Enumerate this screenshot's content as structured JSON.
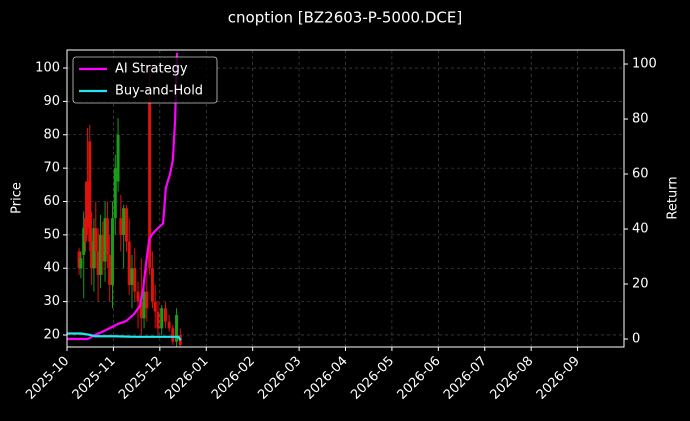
{
  "chart_data": {
    "type": "candlestick",
    "title": "cnoption [BZ2603-P-5000.DCE]",
    "ylabel": "Price",
    "y2label": "Return",
    "up_color": "#1a9e1a",
    "down_color": "#e0120e",
    "candles": {
      "x": [
        0.26,
        0.3,
        0.36,
        0.4,
        0.44,
        0.49,
        0.53,
        0.58,
        0.62,
        0.67,
        0.72,
        0.77,
        0.82,
        0.87,
        0.92,
        0.98,
        1.04,
        1.1,
        1.16,
        1.22,
        1.28,
        1.34,
        1.4,
        1.46,
        1.53,
        1.6,
        1.66,
        1.72,
        1.78,
        1.84,
        1.9,
        1.96,
        2.04,
        2.12,
        2.2,
        2.28,
        2.36,
        2.44
      ],
      "open": [
        45,
        40,
        44,
        55,
        66,
        78,
        48,
        40,
        52,
        45,
        38,
        50,
        42,
        55,
        44,
        35,
        55,
        66,
        55,
        50,
        58,
        48,
        35,
        40,
        33,
        30,
        25,
        33,
        90,
        40,
        30,
        27,
        22,
        28,
        24,
        22,
        18,
        20
      ],
      "high": [
        46,
        45,
        57,
        66,
        82,
        83,
        57,
        55,
        60,
        52,
        56,
        54,
        60,
        60,
        50,
        60,
        74,
        85,
        62,
        59,
        59,
        55,
        44,
        46,
        36,
        43,
        35,
        40,
        100,
        45,
        35,
        30,
        29,
        30,
        26,
        23,
        28,
        22
      ],
      "low": [
        38,
        37,
        31,
        45,
        50,
        45,
        35,
        33,
        40,
        30,
        34,
        38,
        36,
        40,
        30,
        28,
        50,
        63,
        45,
        40,
        45,
        32,
        28,
        30,
        22,
        20,
        22,
        24,
        38,
        28,
        22,
        20,
        20,
        22,
        21,
        17,
        16,
        16
      ],
      "close": [
        40,
        43,
        52,
        48,
        52,
        48,
        40,
        52,
        45,
        38,
        50,
        42,
        55,
        44,
        35,
        55,
        70,
        80,
        50,
        58,
        48,
        35,
        40,
        33,
        30,
        25,
        33,
        28,
        40,
        30,
        27,
        22,
        28,
        24,
        22,
        18,
        26,
        17
      ]
    },
    "series": [
      {
        "name": "AI Strategy",
        "color": "#ff00ff",
        "axis": "y2",
        "x": [
          0,
          0.24,
          0.45,
          0.6,
          0.75,
          0.93,
          1.1,
          1.27,
          1.44,
          1.57,
          1.64,
          1.7,
          1.77,
          1.83,
          1.94,
          2.07,
          2.13,
          2.22,
          2.28,
          2.33,
          2.37
        ],
        "values": [
          0,
          0,
          0,
          1.5,
          2.5,
          4,
          5.5,
          6.5,
          9,
          12,
          18,
          27,
          36,
          38,
          40,
          42,
          55,
          60,
          65,
          80,
          104
        ]
      },
      {
        "name": "Buy-and-Hold",
        "color": "#22e5ee",
        "axis": "y2",
        "x": [
          0,
          0.3,
          0.5,
          0.6,
          1.0,
          1.5,
          2.0,
          2.4,
          2.45
        ],
        "values": [
          2,
          2,
          1.5,
          1,
          1,
          0.8,
          0.8,
          0.8,
          -0.5
        ]
      }
    ],
    "xlim": [
      0,
      12
    ],
    "xticks": [
      {
        "value": 0,
        "label": "2025-10"
      },
      {
        "value": 1,
        "label": "2025-11"
      },
      {
        "value": 2,
        "label": "2025-12"
      },
      {
        "value": 3,
        "label": "2026-01"
      },
      {
        "value": 4,
        "label": "2026-02"
      },
      {
        "value": 5,
        "label": "2026-03"
      },
      {
        "value": 6,
        "label": "2026-04"
      },
      {
        "value": 7,
        "label": "2026-05"
      },
      {
        "value": 8,
        "label": "2026-06"
      },
      {
        "value": 9,
        "label": "2026-07"
      },
      {
        "value": 10,
        "label": "2026-08"
      },
      {
        "value": 11,
        "label": "2026-09"
      }
    ],
    "ylim": [
      16.4,
      105.4
    ],
    "yticks": [
      20,
      30,
      40,
      50,
      60,
      70,
      80,
      90,
      100
    ],
    "y2lim": [
      -2.9,
      105.1
    ],
    "y2ticks": [
      0,
      20,
      40,
      60,
      80,
      100
    ],
    "grid": true,
    "legend": "upper left"
  }
}
